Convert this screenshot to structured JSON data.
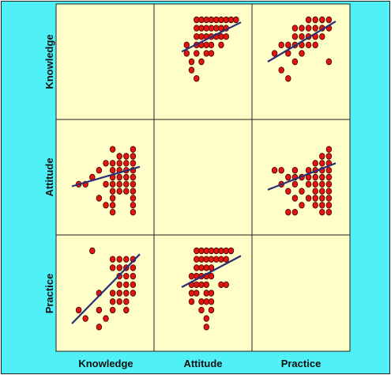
{
  "colors": {
    "frame": "#4ff0f6",
    "panel": "#fffdc8",
    "point_fill": "#e3140c",
    "point_stroke": "#3a0000",
    "fit_line": "#2a2f78",
    "border": "#222222"
  },
  "chart_data": {
    "type": "scatter",
    "variables": [
      "Knowledge",
      "Attitude",
      "Practice"
    ],
    "row_labels": [
      "Knowledge",
      "Attitude",
      "Practice"
    ],
    "column_labels": [
      "Knowledge",
      "Attitude",
      "Practice"
    ],
    "diagonal_empty": true,
    "point_symbol": "red-dot",
    "fit": "linear",
    "grid": false,
    "panels": [
      {
        "row": "Knowledge",
        "col": "Attitude",
        "points": [
          [
            35,
            0
          ],
          [
            36,
            0
          ],
          [
            37,
            0
          ],
          [
            38,
            0
          ],
          [
            39,
            0
          ],
          [
            40,
            0
          ],
          [
            41,
            0
          ],
          [
            42,
            0
          ],
          [
            43,
            0
          ],
          [
            35,
            1
          ],
          [
            36,
            1
          ],
          [
            37,
            1
          ],
          [
            38,
            1
          ],
          [
            39,
            1
          ],
          [
            40,
            1
          ],
          [
            41,
            1
          ],
          [
            35,
            2
          ],
          [
            36,
            2
          ],
          [
            37,
            2
          ],
          [
            38,
            2
          ],
          [
            39,
            2
          ],
          [
            40,
            2
          ],
          [
            41,
            2
          ],
          [
            33,
            3
          ],
          [
            35,
            3
          ],
          [
            36,
            3
          ],
          [
            37,
            3
          ],
          [
            38,
            3
          ],
          [
            40,
            3
          ],
          [
            33,
            4
          ],
          [
            35,
            4
          ],
          [
            37,
            4
          ],
          [
            38,
            4
          ],
          [
            34,
            5
          ],
          [
            36,
            5
          ],
          [
            34,
            6
          ],
          [
            35,
            7
          ]
        ],
        "fit_line": [
          [
            32,
            3.8
          ],
          [
            44,
            0.3
          ]
        ]
      },
      {
        "row": "Knowledge",
        "col": "Practice",
        "points": [
          [
            27,
            0
          ],
          [
            28,
            0
          ],
          [
            29,
            0
          ],
          [
            30,
            0
          ],
          [
            25,
            1
          ],
          [
            26,
            1
          ],
          [
            27,
            1
          ],
          [
            28,
            1
          ],
          [
            29,
            1
          ],
          [
            30,
            1
          ],
          [
            25,
            2
          ],
          [
            26,
            2
          ],
          [
            27,
            2
          ],
          [
            28,
            2
          ],
          [
            29,
            2
          ],
          [
            23,
            3
          ],
          [
            24,
            3
          ],
          [
            25,
            3
          ],
          [
            26,
            3
          ],
          [
            27,
            3
          ],
          [
            28,
            3
          ],
          [
            22,
            4
          ],
          [
            24,
            4
          ],
          [
            26,
            4
          ],
          [
            25,
            5
          ],
          [
            30,
            5
          ],
          [
            23,
            6
          ],
          [
            24,
            7
          ]
        ],
        "fit_line": [
          [
            21,
            5.0
          ],
          [
            31,
            0.2
          ]
        ]
      },
      {
        "row": "Attitude",
        "col": "Knowledge",
        "points": [
          [
            6,
            34
          ],
          [
            9,
            34
          ],
          [
            8,
            35
          ],
          [
            9,
            35
          ],
          [
            7,
            35
          ],
          [
            5,
            36
          ],
          [
            6,
            36
          ],
          [
            7,
            36
          ],
          [
            8,
            36
          ],
          [
            9,
            36
          ],
          [
            4,
            37
          ],
          [
            6,
            37
          ],
          [
            7,
            37
          ],
          [
            8,
            37
          ],
          [
            9,
            37
          ],
          [
            3,
            38
          ],
          [
            6,
            38
          ],
          [
            7,
            38
          ],
          [
            8,
            38
          ],
          [
            9,
            38
          ],
          [
            1,
            39
          ],
          [
            2,
            39
          ],
          [
            5,
            39
          ],
          [
            6,
            39
          ],
          [
            7,
            39
          ],
          [
            8,
            39
          ],
          [
            9,
            39
          ],
          [
            6,
            40
          ],
          [
            7,
            40
          ],
          [
            8,
            40
          ],
          [
            9,
            40
          ],
          [
            4,
            41
          ],
          [
            6,
            41
          ],
          [
            9,
            41
          ],
          [
            5,
            42
          ],
          [
            6,
            42
          ],
          [
            9,
            42
          ],
          [
            6,
            43
          ],
          [
            9,
            43
          ]
        ],
        "fit_line": [
          [
            0,
            39.3
          ],
          [
            10,
            36.5
          ]
        ]
      },
      {
        "row": "Attitude",
        "col": "Practice",
        "points": [
          [
            30,
            34
          ],
          [
            30,
            35
          ],
          [
            29,
            35
          ],
          [
            30,
            36
          ],
          [
            28,
            36
          ],
          [
            29,
            36
          ],
          [
            30,
            37
          ],
          [
            29,
            37
          ],
          [
            28,
            37
          ],
          [
            27,
            37
          ],
          [
            25,
            37
          ],
          [
            22,
            37
          ],
          [
            23,
            37
          ],
          [
            30,
            38
          ],
          [
            29,
            38
          ],
          [
            28,
            38
          ],
          [
            27,
            38
          ],
          [
            26,
            38
          ],
          [
            24,
            38
          ],
          [
            25,
            38
          ],
          [
            30,
            39
          ],
          [
            29,
            39
          ],
          [
            28,
            39
          ],
          [
            27,
            39
          ],
          [
            25,
            39
          ],
          [
            23,
            39
          ],
          [
            30,
            40
          ],
          [
            29,
            40
          ],
          [
            28,
            40
          ],
          [
            26,
            40
          ],
          [
            24,
            40
          ],
          [
            30,
            41
          ],
          [
            29,
            41
          ],
          [
            28,
            41
          ],
          [
            27,
            41
          ],
          [
            25,
            41
          ],
          [
            30,
            42
          ],
          [
            29,
            42
          ],
          [
            28,
            42
          ],
          [
            26,
            42
          ],
          [
            30,
            43
          ],
          [
            29,
            43
          ],
          [
            24,
            43
          ],
          [
            25,
            43
          ]
        ],
        "fit_line": [
          [
            21,
            39.8
          ],
          [
            31,
            36.0
          ]
        ]
      },
      {
        "row": "Practice",
        "col": "Knowledge",
        "points": [
          [
            3,
            21
          ],
          [
            6,
            22
          ],
          [
            7,
            22
          ],
          [
            8,
            22
          ],
          [
            9,
            22
          ],
          [
            6,
            23
          ],
          [
            7,
            23
          ],
          [
            8,
            23
          ],
          [
            9,
            23
          ],
          [
            7,
            24
          ],
          [
            8,
            24
          ],
          [
            9,
            24
          ],
          [
            7,
            25
          ],
          [
            8,
            25
          ],
          [
            9,
            25
          ],
          [
            4,
            26
          ],
          [
            6,
            26
          ],
          [
            7,
            26
          ],
          [
            8,
            26
          ],
          [
            9,
            26
          ],
          [
            6,
            27
          ],
          [
            7,
            27
          ],
          [
            8,
            27
          ],
          [
            1,
            28
          ],
          [
            4,
            28
          ],
          [
            6,
            28
          ],
          [
            8,
            28
          ],
          [
            2,
            29
          ],
          [
            5,
            29
          ],
          [
            4,
            30
          ]
        ],
        "fit_line": [
          [
            0,
            29.6
          ],
          [
            10,
            21.4
          ]
        ]
      },
      {
        "row": "Practice",
        "col": "Attitude",
        "points": [
          [
            35,
            21
          ],
          [
            36,
            21
          ],
          [
            37,
            21
          ],
          [
            38,
            21
          ],
          [
            39,
            21
          ],
          [
            40,
            21
          ],
          [
            41,
            21
          ],
          [
            42,
            21
          ],
          [
            35,
            22
          ],
          [
            36,
            22
          ],
          [
            37,
            22
          ],
          [
            38,
            22
          ],
          [
            39,
            22
          ],
          [
            40,
            22
          ],
          [
            41,
            22
          ],
          [
            35,
            23
          ],
          [
            36,
            23
          ],
          [
            37,
            23
          ],
          [
            38,
            23
          ],
          [
            34,
            24
          ],
          [
            35,
            24
          ],
          [
            36,
            24
          ],
          [
            37,
            24
          ],
          [
            38,
            24
          ],
          [
            34,
            25
          ],
          [
            35,
            25
          ],
          [
            36,
            25
          ],
          [
            37,
            25
          ],
          [
            40,
            25
          ],
          [
            41,
            25
          ],
          [
            34,
            26
          ],
          [
            35,
            26
          ],
          [
            37,
            26
          ],
          [
            38,
            26
          ],
          [
            34,
            27
          ],
          [
            36,
            27
          ],
          [
            37,
            27
          ],
          [
            38,
            27
          ],
          [
            36,
            28
          ],
          [
            38,
            28
          ],
          [
            37,
            29
          ],
          [
            37,
            30
          ]
        ],
        "fit_line": [
          [
            32,
            25.3
          ],
          [
            44,
            21.6
          ]
        ]
      }
    ]
  }
}
